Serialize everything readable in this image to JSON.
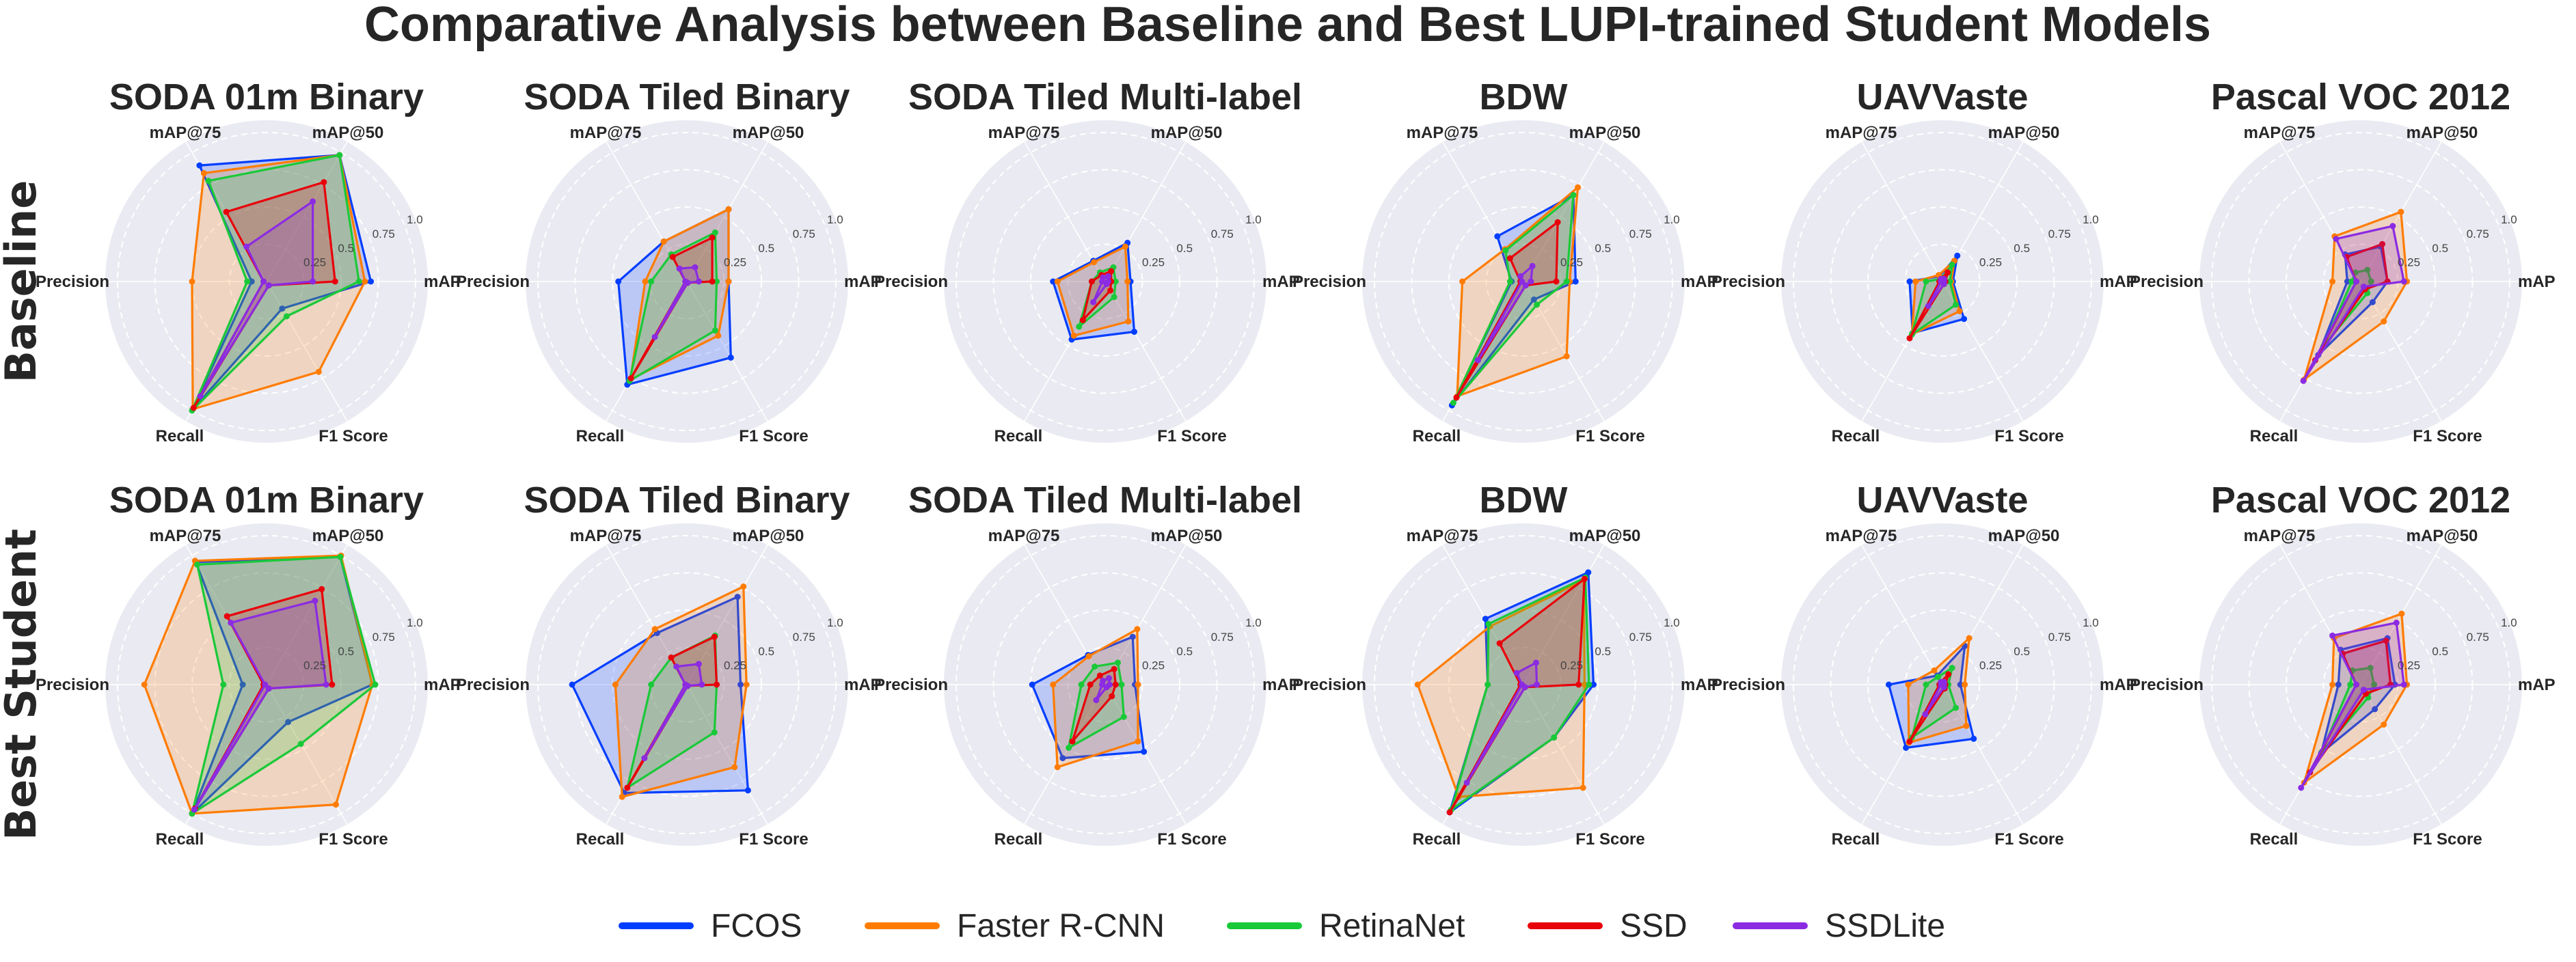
{
  "figure": {
    "suptitle": "Comparative Analysis between Baseline and Best LUPI-trained Student Models",
    "background": "#eaeaf2"
  },
  "chart_data": {
    "type": "radar",
    "title": "Comparative Analysis between Baseline and Best LUPI-trained Student Models",
    "axes": [
      "mAP",
      "mAP@50",
      "mAP@75",
      "Precision",
      "Recall",
      "F1 Score"
    ],
    "rticks": [
      0.25,
      0.5,
      0.75,
      1.0
    ],
    "rtick_labels": [
      "0.25",
      "0.5",
      "0.75",
      "1.0"
    ],
    "rlim": [
      0,
      1.0
    ],
    "grid": true,
    "legend_position": "bottom-center",
    "models": [
      {
        "name": "FCOS",
        "color": "#023eff"
      },
      {
        "name": "Faster R-CNN",
        "color": "#ff7c00"
      },
      {
        "name": "RetinaNet",
        "color": "#1ac938"
      },
      {
        "name": "SSD",
        "color": "#e8000b"
      },
      {
        "name": "SSDLite",
        "color": "#8b2be2"
      }
    ],
    "rows": [
      {
        "label": "Baseline",
        "panels": [
          {
            "title": "SODA 01m Binary",
            "series": {
              "FCOS": [
                0.7,
                0.98,
                0.9,
                0.1,
                0.99,
                0.21
              ],
              "Faster R-CNN": [
                0.66,
                0.98,
                0.84,
                0.5,
                0.99,
                0.7
              ],
              "RetinaNet": [
                0.62,
                0.98,
                0.78,
                0.13,
                1.0,
                0.27
              ],
              "SSD": [
                0.46,
                0.77,
                0.54,
                0.02,
                0.98,
                0.03
              ],
              "SSDLite": [
                0.31,
                0.62,
                0.27,
                0.02,
                0.89,
                0.03
              ]
            }
          },
          {
            "title": "SODA Tiled Binary",
            "series": {
              "FCOS": [
                0.28,
                0.56,
                0.31,
                0.46,
                0.8,
                0.59
              ],
              "Faster R-CNN": [
                0.28,
                0.56,
                0.31,
                0.28,
                0.76,
                0.42
              ],
              "RetinaNet": [
                0.2,
                0.38,
                0.21,
                0.24,
                0.77,
                0.38
              ],
              "SSD": [
                0.17,
                0.34,
                0.19,
                0.01,
                0.75,
                0.01
              ],
              "SSDLite": [
                0.08,
                0.11,
                0.1,
                0.01,
                0.43,
                0.01
              ]
            }
          },
          {
            "title": "SODA Tiled Multi-label",
            "series": {
              "FCOS": [
                0.17,
                0.3,
                0.16,
                0.35,
                0.45,
                0.39
              ],
              "Faster R-CNN": [
                0.15,
                0.27,
                0.15,
                0.32,
                0.42,
                0.31
              ],
              "RetinaNet": [
                0.07,
                0.11,
                0.07,
                0.09,
                0.35,
                0.12
              ],
              "SSD": [
                0.04,
                0.08,
                0.05,
                0.09,
                0.3,
                0.07
              ],
              "SSDLite": [
                0.02,
                0.04,
                0.03,
                0.02,
                0.16,
                0.02
              ]
            }
          },
          {
            "title": "BDW",
            "series": {
              "FCOS": [
                0.35,
                0.67,
                0.35,
                0.08,
                0.96,
                0.14
              ],
              "Faster R-CNN": [
                0.31,
                0.73,
                0.25,
                0.41,
                0.89,
                0.58
              ],
              "RetinaNet": [
                0.29,
                0.67,
                0.24,
                0.09,
                0.94,
                0.18
              ],
              "SSD": [
                0.22,
                0.46,
                0.18,
                0.02,
                0.9,
                0.03
              ],
              "SSDLite": [
                0.05,
                0.12,
                0.04,
                0.01,
                0.61,
                0.03
              ]
            }
          },
          {
            "title": "UAVVaste",
            "series": {
              "FCOS": [
                0.07,
                0.2,
                0.04,
                0.22,
                0.4,
                0.29
              ],
              "Faster R-CNN": [
                0.06,
                0.16,
                0.05,
                0.18,
                0.41,
                0.23
              ],
              "RetinaNet": [
                0.05,
                0.13,
                0.02,
                0.11,
                0.41,
                0.18
              ],
              "SSD": [
                0.02,
                0.07,
                0.02,
                0.02,
                0.44,
                0.02
              ],
              "SSDLite": [
                0.01,
                0.02,
                0.02,
                0.01,
                0.19,
                0.02
              ]
            }
          },
          {
            "title": "Pascal VOC 2012",
            "series": {
              "FCOS": [
                0.18,
                0.27,
                0.21,
                0.09,
                0.57,
                0.16
              ],
              "Faster R-CNN": [
                0.31,
                0.54,
                0.35,
                0.19,
                0.76,
                0.31
              ],
              "RetinaNet": [
                0.07,
                0.09,
                0.07,
                0.06,
                0.5,
                0.09
              ],
              "SSD": [
                0.18,
                0.29,
                0.19,
                0.03,
                0.61,
                0.06
              ],
              "SSDLite": [
                0.29,
                0.43,
                0.33,
                0.03,
                0.77,
                0.04
              ]
            }
          }
        ]
      },
      {
        "label": "Best Student",
        "panels": [
          {
            "title": "SODA 01m Binary",
            "series": {
              "FCOS": [
                0.71,
                0.99,
                0.95,
                0.16,
                1.0,
                0.29
              ],
              "Faster R-CNN": [
                0.71,
                1.0,
                0.96,
                0.82,
                1.0,
                0.93
              ],
              "RetinaNet": [
                0.73,
                0.99,
                0.93,
                0.29,
                1.0,
                0.46
              ],
              "SSD": [
                0.44,
                0.74,
                0.53,
                0.02,
                0.96,
                0.03
              ],
              "SSDLite": [
                0.4,
                0.65,
                0.48,
                0.01,
                0.97,
                0.03
              ]
            }
          },
          {
            "title": "SODA Tiled Binary",
            "series": {
              "FCOS": [
                0.36,
                0.68,
                0.4,
                0.77,
                0.84,
                0.82
              ],
              "Faster R-CNN": [
                0.4,
                0.76,
                0.43,
                0.48,
                0.87,
                0.64
              ],
              "RetinaNet": [
                0.2,
                0.38,
                0.21,
                0.24,
                0.8,
                0.37
              ],
              "SSD": [
                0.2,
                0.37,
                0.21,
                0.01,
                0.8,
                0.01
              ],
              "SSDLite": [
                0.1,
                0.16,
                0.14,
                0.01,
                0.57,
                0.01
              ]
            }
          },
          {
            "title": "SODA Tiled Multi-label",
            "series": {
              "FCOS": [
                0.2,
                0.37,
                0.23,
                0.49,
                0.57,
                0.52
              ],
              "Faster R-CNN": [
                0.22,
                0.43,
                0.22,
                0.35,
                0.64,
                0.44
              ],
              "RetinaNet": [
                0.11,
                0.17,
                0.14,
                0.16,
                0.49,
                0.25
              ],
              "SSD": [
                0.07,
                0.12,
                0.07,
                0.1,
                0.44,
                0.09
              ],
              "SSDLite": [
                0.03,
                0.05,
                0.03,
                0.02,
                0.12,
                0.02
              ]
            }
          },
          {
            "title": "BDW",
            "series": {
              "FCOS": [
                0.47,
                0.87,
                0.51,
                0.24,
                0.99,
                0.41
              ],
              "Faster R-CNN": [
                0.41,
                0.81,
                0.45,
                0.71,
                0.87,
                0.8
              ],
              "RetinaNet": [
                0.44,
                0.83,
                0.47,
                0.24,
                0.97,
                0.41
              ],
              "SSD": [
                0.37,
                0.82,
                0.32,
                0.02,
                0.99,
                0.02
              ],
              "SSDLite": [
                0.09,
                0.17,
                0.09,
                0.01,
                0.76,
                0.02
              ]
            }
          },
          {
            "title": "UAVVaste",
            "series": {
              "FCOS": [
                0.12,
                0.3,
                0.07,
                0.36,
                0.49,
                0.42
              ],
              "Faster R-CNN": [
                0.15,
                0.36,
                0.11,
                0.23,
                0.45,
                0.32
              ],
              "RetinaNet": [
                0.04,
                0.13,
                0.06,
                0.11,
                0.41,
                0.18
              ],
              "SSD": [
                0.02,
                0.08,
                0.02,
                0.02,
                0.44,
                0.03
              ],
              "SSDLite": [
                0.01,
                0.02,
                0.02,
                0.01,
                0.23,
                0.02
              ]
            }
          },
          {
            "title": "Pascal VOC 2012",
            "series": {
              "FCOS": [
                0.23,
                0.36,
                0.27,
                0.15,
                0.53,
                0.19
              ],
              "Faster R-CNN": [
                0.31,
                0.55,
                0.36,
                0.19,
                0.76,
                0.31
              ],
              "RetinaNet": [
                0.09,
                0.13,
                0.11,
                0.07,
                0.52,
                0.1
              ],
              "SSD": [
                0.2,
                0.34,
                0.24,
                0.03,
                0.68,
                0.07
              ],
              "SSDLite": [
                0.29,
                0.48,
                0.38,
                0.03,
                0.8,
                0.04
              ]
            }
          }
        ]
      }
    ]
  }
}
